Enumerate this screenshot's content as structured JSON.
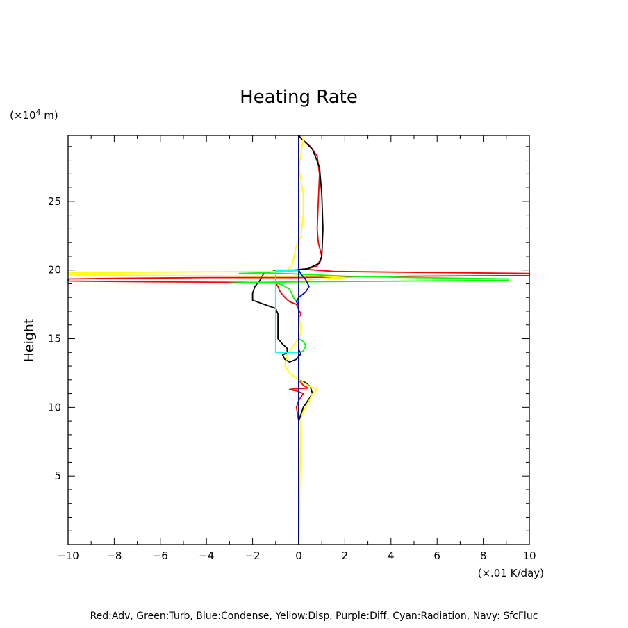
{
  "chart_data": {
    "type": "line",
    "title": "Heating Rate",
    "ylabel": "Height",
    "y_units_prefix": "(×10",
    "y_units_exp": "4",
    "y_units_suffix": " m)",
    "x_units": "(×.01 K/day)",
    "xlim": [
      -10,
      10
    ],
    "ylim": [
      0,
      29.8
    ],
    "x_ticks": [
      "−10",
      "−8",
      "−6",
      "−4",
      "−2",
      "0",
      "2",
      "4",
      "6",
      "8",
      "10"
    ],
    "x_tick_values": [
      -10,
      -8,
      -6,
      -4,
      -2,
      0,
      2,
      4,
      6,
      8,
      10
    ],
    "y_ticks": [
      "5",
      "10",
      "15",
      "20",
      "25"
    ],
    "y_tick_values": [
      5,
      10,
      15,
      20,
      25
    ],
    "grid": false,
    "legend_text": "Red:Adv, Green:Turb, Blue:Condense, Yellow:Disp, Purple:Diff, Cyan:Radiation, Navy: SfcFluc",
    "series": [
      {
        "name": "Red:Adv",
        "color": "#ff0000",
        "points": [
          [
            0.0,
            29.8
          ],
          [
            0.1,
            29.6
          ],
          [
            0.5,
            29.0
          ],
          [
            0.8,
            28.3
          ],
          [
            0.9,
            27.0
          ],
          [
            0.85,
            25.0
          ],
          [
            0.8,
            23.0
          ],
          [
            0.85,
            22.0
          ],
          [
            1.0,
            21.0
          ],
          [
            0.8,
            20.3
          ],
          [
            0.3,
            20.05
          ],
          [
            1.5,
            19.9
          ],
          [
            4.0,
            19.85
          ],
          [
            7.0,
            19.8
          ],
          [
            10.0,
            19.75
          ],
          [
            10.0,
            19.6
          ],
          [
            5.0,
            19.55
          ],
          [
            1.5,
            19.5
          ],
          [
            0.0,
            19.45
          ],
          [
            -4.0,
            19.45
          ],
          [
            -8.0,
            19.4
          ],
          [
            -10.0,
            19.35
          ],
          [
            -10.0,
            19.2
          ],
          [
            -7.0,
            19.15
          ],
          [
            -2.0,
            19.1
          ],
          [
            -1.0,
            19.05
          ],
          [
            -0.9,
            18.8
          ],
          [
            -0.8,
            18.4
          ],
          [
            -0.6,
            18.0
          ],
          [
            -0.4,
            17.7
          ],
          [
            -0.1,
            17.5
          ],
          [
            0.0,
            17.1
          ],
          [
            0.1,
            16.8
          ],
          [
            0.0,
            16.5
          ],
          [
            0.0,
            12.0
          ],
          [
            0.2,
            11.6
          ],
          [
            0.4,
            11.4
          ],
          [
            -0.2,
            11.35
          ],
          [
            -0.4,
            11.3
          ],
          [
            -0.1,
            11.2
          ],
          [
            0.2,
            11.0
          ],
          [
            0.0,
            10.5
          ],
          [
            -0.1,
            10.0
          ],
          [
            0.0,
            9.0
          ],
          [
            0.0,
            8.0
          ],
          [
            0.0,
            0.0
          ]
        ]
      },
      {
        "name": "Black",
        "color": "#000000",
        "points": [
          [
            0.0,
            29.8
          ],
          [
            0.1,
            29.6
          ],
          [
            0.6,
            28.8
          ],
          [
            0.9,
            27.5
          ],
          [
            1.0,
            25.5
          ],
          [
            1.05,
            23.0
          ],
          [
            1.0,
            21.0
          ],
          [
            0.9,
            20.5
          ],
          [
            0.4,
            20.1
          ],
          [
            -0.2,
            20.0
          ],
          [
            -1.0,
            19.95
          ],
          [
            -1.5,
            19.8
          ],
          [
            -1.6,
            19.5
          ],
          [
            -1.7,
            19.2
          ],
          [
            -1.9,
            18.8
          ],
          [
            -2.0,
            18.3
          ],
          [
            -2.0,
            17.8
          ],
          [
            -1.5,
            17.5
          ],
          [
            -1.0,
            17.2
          ],
          [
            -0.9,
            16.8
          ],
          [
            -0.9,
            16.0
          ],
          [
            -0.9,
            15.0
          ],
          [
            -0.7,
            14.6
          ],
          [
            -0.5,
            14.3
          ],
          [
            -0.5,
            14.0
          ],
          [
            -0.7,
            13.8
          ],
          [
            -0.6,
            13.5
          ],
          [
            -0.4,
            13.3
          ],
          [
            -0.1,
            13.5
          ],
          [
            0.1,
            13.9
          ],
          [
            0.0,
            14.2
          ],
          [
            0.0,
            12.0
          ],
          [
            0.3,
            11.8
          ],
          [
            0.5,
            11.5
          ],
          [
            0.6,
            11.0
          ],
          [
            0.4,
            10.5
          ],
          [
            0.2,
            10.0
          ],
          [
            0.1,
            9.5
          ],
          [
            0.0,
            9.0
          ],
          [
            0.0,
            0.0
          ]
        ]
      },
      {
        "name": "Yellow:Disp",
        "color": "#ffff00",
        "points": [
          [
            0.1,
            29.8
          ],
          [
            0.2,
            29.5
          ],
          [
            0.1,
            28.5
          ],
          [
            0.0,
            27.5
          ],
          [
            0.1,
            26.5
          ],
          [
            0.2,
            25.5
          ],
          [
            0.2,
            24.0
          ],
          [
            0.1,
            22.5
          ],
          [
            -0.1,
            21.8
          ],
          [
            -0.2,
            21.0
          ],
          [
            -0.3,
            20.3
          ],
          [
            -0.5,
            20.0
          ],
          [
            -1.0,
            19.9
          ],
          [
            -6.0,
            19.85
          ],
          [
            -10.0,
            19.8
          ],
          [
            -10.0,
            19.65
          ],
          [
            -6.0,
            19.6
          ],
          [
            -2.0,
            19.55
          ],
          [
            1.0,
            19.55
          ],
          [
            2.0,
            19.45
          ],
          [
            0.5,
            19.3
          ],
          [
            0.0,
            19.1
          ],
          [
            0.0,
            17.0
          ],
          [
            0.1,
            15.5
          ],
          [
            0.0,
            15.0
          ],
          [
            -0.1,
            14.8
          ],
          [
            -0.3,
            14.3
          ],
          [
            -0.5,
            13.9
          ],
          [
            -0.6,
            13.0
          ],
          [
            -0.4,
            12.5
          ],
          [
            0.0,
            12.0
          ],
          [
            0.5,
            11.5
          ],
          [
            0.8,
            11.3
          ],
          [
            0.6,
            11.0
          ],
          [
            0.4,
            10.3
          ],
          [
            0.2,
            9.7
          ],
          [
            0.1,
            9.2
          ],
          [
            0.0,
            0.0
          ]
        ]
      },
      {
        "name": "Green:Turb",
        "color": "#00ff00",
        "points": [
          [
            -2.6,
            19.75
          ],
          [
            -1.5,
            19.8
          ],
          [
            0.0,
            19.7
          ],
          [
            2.0,
            19.55
          ],
          [
            5.0,
            19.45
          ],
          [
            9.1,
            19.35
          ],
          [
            9.1,
            19.25
          ],
          [
            5.0,
            19.2
          ],
          [
            0.5,
            19.15
          ],
          [
            -2.0,
            19.1
          ],
          [
            -3.0,
            19.05
          ],
          [
            -1.0,
            19.05
          ],
          [
            -0.7,
            18.9
          ],
          [
            -0.4,
            18.6
          ],
          [
            -0.3,
            18.3
          ],
          [
            -0.2,
            17.9
          ],
          [
            0.0,
            17.6
          ],
          [
            0.0,
            15.0
          ],
          [
            0.2,
            14.8
          ],
          [
            0.3,
            14.5
          ],
          [
            0.2,
            14.1
          ],
          [
            0.0,
            14.0
          ],
          [
            0.0,
            0.0
          ]
        ]
      },
      {
        "name": "Cyan:Radiation",
        "color": "#00ffff",
        "points": [
          [
            -1.0,
            19.9
          ],
          [
            0.0,
            19.95
          ],
          [
            0.0,
            20.0
          ],
          [
            -1.0,
            20.0
          ],
          [
            -1.0,
            14.0
          ],
          [
            0.0,
            14.0
          ],
          [
            0.0,
            15.5
          ]
        ]
      },
      {
        "name": "Blue:Condense",
        "color": "#0000ff",
        "points": [
          [
            0.0,
            29.8
          ],
          [
            0.0,
            20.0
          ],
          [
            0.1,
            19.7
          ],
          [
            0.3,
            19.3
          ],
          [
            0.45,
            18.8
          ],
          [
            0.3,
            18.4
          ],
          [
            0.0,
            18.0
          ],
          [
            -0.1,
            17.7
          ],
          [
            0.0,
            17.4
          ],
          [
            0.0,
            0.0
          ]
        ]
      },
      {
        "name": "Navy: SfcFluc",
        "color": "#000080",
        "points": [
          [
            0.0,
            29.8
          ],
          [
            0.0,
            0.0
          ]
        ]
      }
    ]
  }
}
